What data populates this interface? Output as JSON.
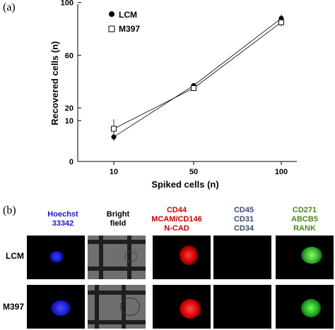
{
  "panel_a_label": "(a)",
  "panel_b_label": "(b)",
  "chart_data": {
    "type": "line",
    "xlabel": "Spiked cells (n)",
    "ylabel": "Recovered cells (n)",
    "categories": [
      "10",
      "50",
      "100"
    ],
    "y_ticks": [
      "0",
      "10",
      "20",
      "60",
      "100"
    ],
    "series": [
      {
        "name": "LCM",
        "marker": "filled-circle",
        "values": [
          6,
          37,
          88
        ],
        "errors": [
          1,
          1,
          3
        ]
      },
      {
        "name": "M397",
        "marker": "open-square",
        "values": [
          8,
          35,
          85
        ],
        "errors": [
          3,
          1,
          3
        ]
      }
    ]
  },
  "panel_b": {
    "columns": [
      {
        "lines": [
          "Hoechst",
          "33342"
        ],
        "color": "#1a1acc"
      },
      {
        "lines": [
          "Bright",
          "field"
        ],
        "color": "#000000"
      },
      {
        "lines": [
          "CD44",
          "MCAM/CD146",
          "N-CAD"
        ],
        "color": "#cc0000"
      },
      {
        "lines": [
          "CD45",
          "CD31",
          "CD34"
        ],
        "color": "#3a4a6e"
      },
      {
        "lines": [
          "CD271",
          "ABCB5",
          "RANK"
        ],
        "color": "#4a8a1a"
      }
    ],
    "rows": [
      "LCM",
      "M397"
    ]
  }
}
